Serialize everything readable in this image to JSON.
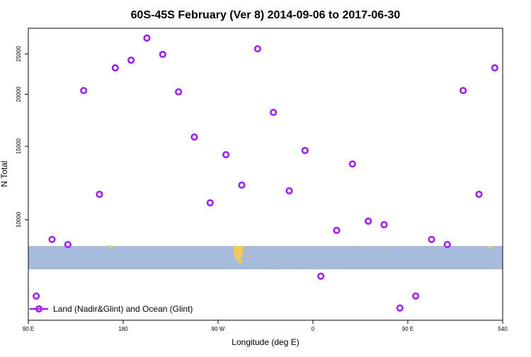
{
  "chart_data": {
    "type": "scatter",
    "title": "60S-45S February (Ver 8)   2014-09-06 to 2017-06-30",
    "x_label": "Longitude (deg E)",
    "y_label": "N Total",
    "log_y": true,
    "legend": "bottom-left",
    "xlim": [
      90,
      540
    ],
    "xticks": [
      {
        "value": 90,
        "label": "90 E"
      },
      180,
      {
        "value": 270,
        "label": "90 W"
      },
      {
        "value": 360,
        "label": "0"
      },
      {
        "value": 450,
        "label": "90 E"
      },
      540
    ],
    "ylim": [
      5740,
      28800
    ],
    "yticks": [
      10000,
      15000,
      20000,
      25000
    ],
    "series": [
      {
        "name": "Land (Nadir&Glint) and Ocean (Glint)",
        "color": "#a020f0",
        "x": [
          97.5,
          112.5,
          127.5,
          142.5,
          157.5,
          172.5,
          187.5,
          202.5,
          217.5,
          232.5,
          247.5,
          262.5,
          277.5,
          292.5,
          307.5,
          322.5,
          337.5,
          352.5,
          367.5,
          382.5,
          397.5,
          412.5,
          427.5,
          442.5,
          457.5,
          472.5,
          487.5,
          502.5,
          517.5,
          532.5
        ],
        "values": [
          6560,
          8970,
          8720,
          20420,
          11510,
          23140,
          24150,
          27280,
          24930,
          20270,
          15790,
          10980,
          14320,
          12110,
          25710,
          18100,
          11730,
          14660,
          7320,
          9430,
          13610,
          9920,
          9730,
          6140,
          6560,
          8970,
          8720,
          20420,
          11510,
          23140
        ]
      }
    ]
  }
}
